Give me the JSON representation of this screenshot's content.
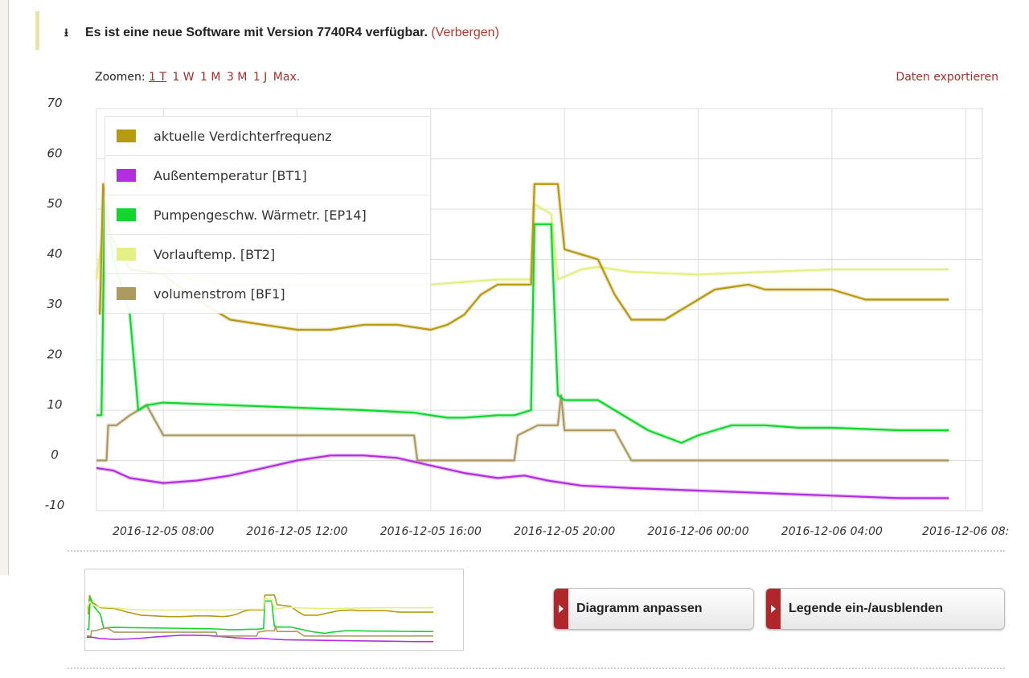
{
  "notice": {
    "icon": "download-icon",
    "text": "Es ist eine neue Software mit Version 7740R4 verfügbar.",
    "hide_link": "(Verbergen)"
  },
  "zoom": {
    "label": "Zoomen:",
    "options": [
      "1 T",
      "1 W",
      "1 M",
      "3 M",
      "1 J",
      "Max."
    ],
    "active": "1 T"
  },
  "export_link": "Daten exportieren",
  "legend": [
    {
      "label": "aktuelle Verdichterfrequenz",
      "color": "#b69a12"
    },
    {
      "label": "Außentemperatur [BT1]",
      "color": "#b22ee0"
    },
    {
      "label": "Pumpengeschw. Wärmetr. [EP14]",
      "color": "#12d62e"
    },
    {
      "label": "Vorlauftemp. [BT2]",
      "color": "#e4ef84"
    },
    {
      "label": "volumenstrom [BF1]",
      "color": "#ac9a62"
    }
  ],
  "buttons": {
    "adjust": "Diagramm anpassen",
    "toggle_legend": "Legende ein-/ausblenden"
  },
  "chart_data": {
    "type": "line",
    "y_ticks": [
      "70",
      "60",
      "50",
      "40",
      "30",
      "20",
      "10",
      "0",
      "-10"
    ],
    "x_ticks": [
      "2016-12-05 08:00",
      "2016-12-05 12:00",
      "2016-12-05 16:00",
      "2016-12-05 20:00",
      "2016-12-06 00:00",
      "2016-12-06 04:00",
      "2016-12-06 08:"
    ],
    "x_range": [
      "2016-12-05 06:00",
      "2016-12-06 08:00"
    ],
    "ylim": [
      -10,
      70
    ],
    "grid": true,
    "legend_position": "top-left",
    "series": [
      {
        "name": "aktuelle Verdichterfrequenz",
        "color": "#b69a12",
        "points": [
          [
            6.1,
            29
          ],
          [
            6.2,
            55
          ],
          [
            6.4,
            45
          ],
          [
            7.0,
            38
          ],
          [
            8.0,
            37
          ],
          [
            9.0,
            32
          ],
          [
            10.0,
            28
          ],
          [
            11.0,
            27
          ],
          [
            12.0,
            26
          ],
          [
            13.0,
            26
          ],
          [
            14.0,
            27
          ],
          [
            15.0,
            27
          ],
          [
            16.0,
            26
          ],
          [
            16.5,
            27
          ],
          [
            17.0,
            29
          ],
          [
            17.5,
            33
          ],
          [
            18.0,
            35
          ],
          [
            19.0,
            35
          ],
          [
            19.1,
            55
          ],
          [
            19.8,
            55
          ],
          [
            20.0,
            42
          ],
          [
            20.5,
            41
          ],
          [
            21.0,
            40
          ],
          [
            21.5,
            33
          ],
          [
            22.0,
            28
          ],
          [
            23.0,
            28
          ],
          [
            23.5,
            30
          ],
          [
            24.5,
            34
          ],
          [
            25.5,
            35
          ],
          [
            26.0,
            34
          ],
          [
            28.0,
            34
          ],
          [
            29.0,
            32
          ],
          [
            31.0,
            32
          ],
          [
            31.5,
            32
          ]
        ]
      },
      {
        "name": "Außentemperatur [BT1]",
        "color": "#b22ee0",
        "points": [
          [
            6.0,
            -1.5
          ],
          [
            6.5,
            -2
          ],
          [
            7.0,
            -3.5
          ],
          [
            8.0,
            -4.5
          ],
          [
            9.0,
            -4
          ],
          [
            10.0,
            -3
          ],
          [
            11.0,
            -1.5
          ],
          [
            12.0,
            0
          ],
          [
            13.0,
            1
          ],
          [
            14.0,
            1
          ],
          [
            15.0,
            0.5
          ],
          [
            16.0,
            -1
          ],
          [
            17.0,
            -2.5
          ],
          [
            18.0,
            -3.5
          ],
          [
            18.8,
            -3
          ],
          [
            19.5,
            -4
          ],
          [
            20.5,
            -5
          ],
          [
            22.0,
            -5.5
          ],
          [
            24.0,
            -6
          ],
          [
            26.0,
            -6.5
          ],
          [
            28.0,
            -7
          ],
          [
            30.0,
            -7.5
          ],
          [
            31.5,
            -7.5
          ]
        ]
      },
      {
        "name": "Pumpengeschw. Wärmetr. [EP14]",
        "color": "#12d62e",
        "points": [
          [
            6.0,
            9
          ],
          [
            6.15,
            9
          ],
          [
            6.25,
            52
          ],
          [
            6.5,
            40
          ],
          [
            7.0,
            29
          ],
          [
            7.25,
            10
          ],
          [
            7.5,
            11
          ],
          [
            8.0,
            11.5
          ],
          [
            10.0,
            11
          ],
          [
            12.0,
            10.5
          ],
          [
            14.0,
            10
          ],
          [
            15.5,
            9.5
          ],
          [
            16.0,
            9
          ],
          [
            16.5,
            8.5
          ],
          [
            17.0,
            8.5
          ],
          [
            18.0,
            9
          ],
          [
            18.5,
            9
          ],
          [
            19.0,
            10
          ],
          [
            19.1,
            47
          ],
          [
            19.6,
            47
          ],
          [
            19.8,
            13
          ],
          [
            20.0,
            12
          ],
          [
            21.0,
            12
          ],
          [
            21.5,
            10
          ],
          [
            22.0,
            8
          ],
          [
            22.5,
            6
          ],
          [
            23.5,
            3.5
          ],
          [
            24.0,
            5
          ],
          [
            24.5,
            6
          ],
          [
            25.0,
            7
          ],
          [
            26.0,
            7
          ],
          [
            27.0,
            6.5
          ],
          [
            28.0,
            6.5
          ],
          [
            30.0,
            6
          ],
          [
            31.5,
            6
          ]
        ]
      },
      {
        "name": "Vorlauftemp. [BT2]",
        "color": "#e4ef84",
        "points": [
          [
            6.0,
            36
          ],
          [
            6.2,
            46
          ],
          [
            6.5,
            41
          ],
          [
            7.0,
            39
          ],
          [
            8.0,
            38
          ],
          [
            9.0,
            36
          ],
          [
            10.0,
            35
          ],
          [
            12.0,
            35
          ],
          [
            14.0,
            35
          ],
          [
            16.0,
            35
          ],
          [
            17.0,
            35.5
          ],
          [
            18.0,
            36
          ],
          [
            19.0,
            36
          ],
          [
            19.1,
            51
          ],
          [
            19.6,
            49
          ],
          [
            19.8,
            36
          ],
          [
            20.5,
            38
          ],
          [
            21.0,
            38.5
          ],
          [
            22.0,
            37.5
          ],
          [
            24.0,
            37
          ],
          [
            26.0,
            37.5
          ],
          [
            28.0,
            38
          ],
          [
            30.0,
            38
          ],
          [
            31.5,
            38
          ]
        ]
      },
      {
        "name": "volumenstrom [BF1]",
        "color": "#ac9a62",
        "points": [
          [
            6.0,
            0
          ],
          [
            6.3,
            0
          ],
          [
            6.35,
            7
          ],
          [
            6.6,
            7
          ],
          [
            7.0,
            9
          ],
          [
            7.5,
            11
          ],
          [
            8.0,
            5
          ],
          [
            10.0,
            5
          ],
          [
            12.0,
            5
          ],
          [
            14.0,
            5
          ],
          [
            15.5,
            5
          ],
          [
            15.6,
            0
          ],
          [
            17.0,
            0
          ],
          [
            18.5,
            0
          ],
          [
            18.6,
            5
          ],
          [
            19.2,
            7
          ],
          [
            19.8,
            7
          ],
          [
            19.9,
            13
          ],
          [
            20.0,
            6
          ],
          [
            21.5,
            6
          ],
          [
            22.0,
            0
          ],
          [
            25.0,
            0
          ],
          [
            28.0,
            0
          ],
          [
            31.5,
            0
          ]
        ]
      }
    ]
  }
}
